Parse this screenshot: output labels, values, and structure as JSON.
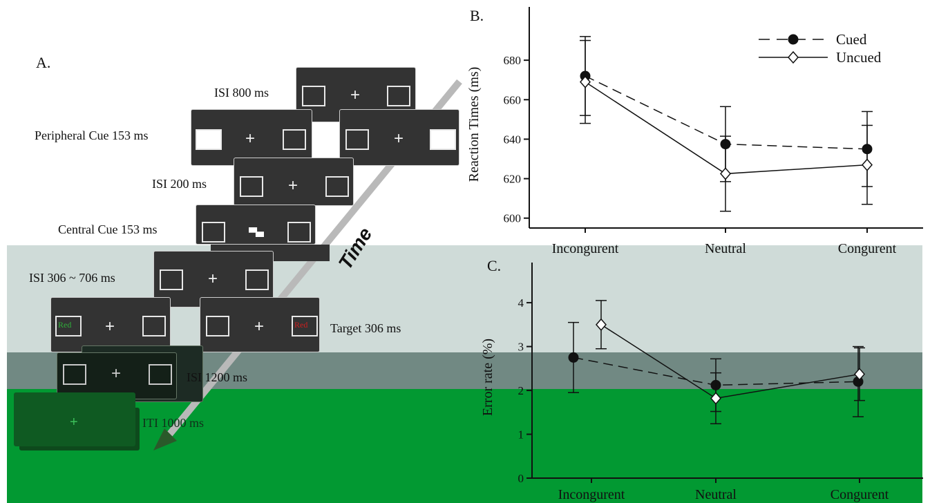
{
  "panels": {
    "a": "A.",
    "b": "B.",
    "c": "C."
  },
  "timeline": {
    "arrow_label": "Time",
    "steps": [
      {
        "label": "ISI  800 ms"
      },
      {
        "label": "Peripheral Cue 153 ms"
      },
      {
        "label": "ISI  200 ms"
      },
      {
        "label": "Central Cue 153 ms"
      },
      {
        "label": "ISI 306 ~ 706 ms"
      },
      {
        "label": "Target 306 ms"
      },
      {
        "label": "ISI  1200 ms"
      },
      {
        "label": "ITI  1000 ms"
      }
    ],
    "target_words": {
      "left": "Red",
      "right": "Red"
    },
    "fixation": "+",
    "colors": {
      "screen": "#333333",
      "word_green": "#2fae3a",
      "word_red": "#cc1f1f"
    }
  },
  "chart_data": [
    {
      "type": "line",
      "panel": "B.",
      "categories": [
        "Incongurent",
        "Neutral",
        "Congurent"
      ],
      "ylabel": "Reaction Times (ms)",
      "ylim": [
        595,
        700
      ],
      "yticks": [
        600,
        620,
        640,
        660,
        680
      ],
      "series": [
        {
          "name": "Cued",
          "marker": "filled-circle",
          "line": "dashed",
          "values": [
            672,
            637.5,
            635
          ],
          "err": [
            20,
            19,
            19
          ]
        },
        {
          "name": "Uncued",
          "marker": "open-diamond",
          "line": "solid",
          "values": [
            669,
            622.5,
            627
          ],
          "err": [
            21,
            19,
            20
          ]
        }
      ],
      "legend": "top-right"
    },
    {
      "type": "line",
      "panel": "C.",
      "categories": [
        "Incongurent",
        "Neutral",
        "Congurent"
      ],
      "ylabel": "Error rate (%)",
      "ylim": [
        0,
        4.6
      ],
      "yticks": [
        0,
        1,
        2,
        3,
        4
      ],
      "series": [
        {
          "name": "Cued",
          "marker": "filled-circle",
          "line": "dashed",
          "values": [
            2.75,
            2.12,
            2.2
          ],
          "err": [
            0.8,
            0.6,
            0.8
          ]
        },
        {
          "name": "Uncued",
          "marker": "open-diamond",
          "line": "solid",
          "values": [
            3.5,
            1.82,
            2.37
          ],
          "err": [
            0.55,
            0.58,
            0.6
          ]
        }
      ]
    }
  ]
}
